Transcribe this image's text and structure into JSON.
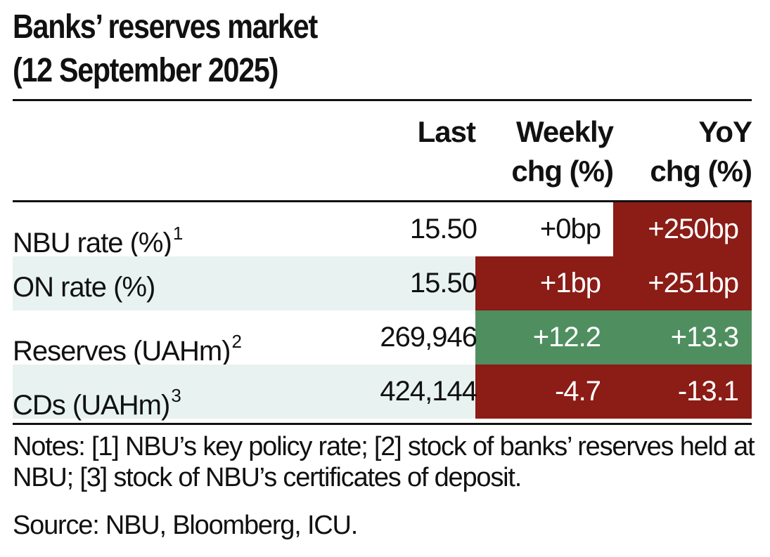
{
  "title_line1": "Banks’ reserves market",
  "title_line2": "(12 September 2025)",
  "headers": {
    "last": "Last",
    "weekly_line1": "Weekly",
    "weekly_line2": "chg (%)",
    "yoy_line1": "YoY",
    "yoy_line2": "chg (%)"
  },
  "colors": {
    "negative_fill": "#8b1c16",
    "positive_fill": "#4f8f5f",
    "band_fill": "#e8f3f1",
    "text_on_fill": "#ffffff"
  },
  "chart_data": {
    "type": "table",
    "columns": [
      "",
      "Last",
      "Weekly chg (%)",
      "YoY chg (%)"
    ],
    "rows": [
      {
        "label": "NBU rate (%)",
        "note": "1",
        "last": "15.50",
        "weekly": "+0bp",
        "yoy": "+250bp",
        "weekly_fill": "none",
        "yoy_fill": "negative"
      },
      {
        "label": "ON rate (%)",
        "note": "",
        "last": "15.50",
        "weekly": "+1bp",
        "yoy": "+251bp",
        "weekly_fill": "negative",
        "yoy_fill": "negative"
      },
      {
        "label": "Reserves (UAHm)",
        "note": "2",
        "last": "269,946",
        "weekly": "+12.2",
        "yoy": "+13.3",
        "weekly_fill": "positive",
        "yoy_fill": "positive"
      },
      {
        "label": "CDs (UAHm)",
        "note": "3",
        "last": "424,144",
        "weekly": "-4.7",
        "yoy": "-13.1",
        "weekly_fill": "negative",
        "yoy_fill": "negative"
      }
    ]
  },
  "notes": "Notes: [1] NBU’s key policy rate; [2] stock of banks’ reserves held at NBU; [3] stock of NBU’s certificates of deposit.",
  "source": "Source: NBU, Bloomberg, ICU."
}
